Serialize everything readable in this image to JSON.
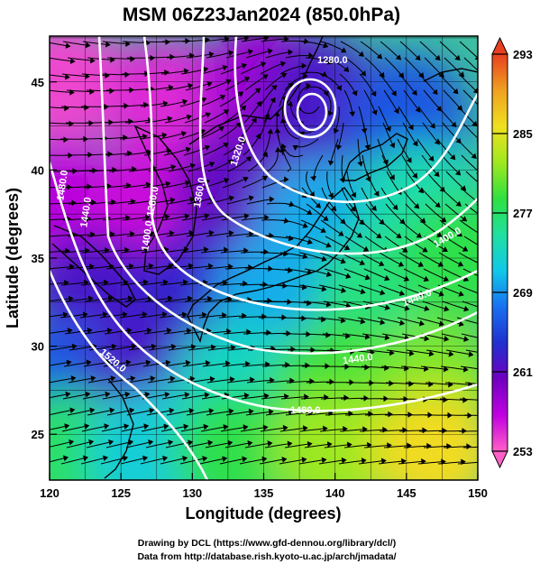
{
  "title": "MSM 06Z23Jan2024 (850.0hPa)",
  "x_axis": {
    "label": "Longitude (degrees)",
    "range": [
      120,
      150
    ],
    "ticks": [
      120,
      125,
      130,
      135,
      140,
      145,
      150
    ]
  },
  "y_axis": {
    "label": "Latitude  (degrees)",
    "range": [
      22.4,
      47.6
    ],
    "ticks": [
      25,
      30,
      35,
      40,
      45
    ]
  },
  "colorbar": {
    "range": [
      253,
      293
    ],
    "ticks": [
      253,
      261,
      269,
      277,
      285,
      293
    ],
    "colors": [
      "#ff60c8",
      "#c000e0",
      "#7000c0",
      "#2030d0",
      "#1870f0",
      "#10c8e8",
      "#20e0a0",
      "#30e040",
      "#a0e820",
      "#f0e020",
      "#f0a020",
      "#e84020"
    ]
  },
  "contour_labels": [
    "1280.0",
    "1320.0",
    "1360.0",
    "1400.0",
    "1440.0",
    "1480.0",
    "1520.0"
  ],
  "credits": {
    "line1": "Drawing by DCL (https://www.gfd-dennou.org/library/dcl/)",
    "line2": "Data from http://database.rish.kyoto-u.ac.jp/arch/jmadata/"
  },
  "chart_data": {
    "type": "heatmap",
    "title": "MSM 06Z23Jan2024 (850.0hPa)",
    "xlabel": "Longitude (degrees)",
    "ylabel": "Latitude  (degrees)",
    "xlim": [
      120,
      150
    ],
    "ylim": [
      22.4,
      47.6
    ],
    "color_range": [
      253,
      293
    ],
    "temperature_samples": [
      {
        "lon": 121,
        "lat": 45,
        "value": 254
      },
      {
        "lon": 128,
        "lat": 44,
        "value": 255
      },
      {
        "lon": 135,
        "lat": 45,
        "value": 258
      },
      {
        "lon": 139,
        "lat": 44,
        "value": 262
      },
      {
        "lon": 145,
        "lat": 43,
        "value": 266
      },
      {
        "lon": 121,
        "lat": 38,
        "value": 257
      },
      {
        "lon": 127,
        "lat": 38,
        "value": 256
      },
      {
        "lon": 133,
        "lat": 39,
        "value": 261
      },
      {
        "lon": 139,
        "lat": 37,
        "value": 270
      },
      {
        "lon": 146,
        "lat": 38,
        "value": 274
      },
      {
        "lon": 123,
        "lat": 33,
        "value": 262
      },
      {
        "lon": 130,
        "lat": 33,
        "value": 263
      },
      {
        "lon": 136,
        "lat": 33,
        "value": 270
      },
      {
        "lon": 143,
        "lat": 33,
        "value": 276
      },
      {
        "lon": 149,
        "lat": 35,
        "value": 278
      },
      {
        "lon": 121,
        "lat": 28,
        "value": 266
      },
      {
        "lon": 127,
        "lat": 28,
        "value": 262
      },
      {
        "lon": 133,
        "lat": 28,
        "value": 273
      },
      {
        "lon": 140,
        "lat": 28,
        "value": 279
      },
      {
        "lon": 147,
        "lat": 28,
        "value": 281
      },
      {
        "lon": 121,
        "lat": 24,
        "value": 277
      },
      {
        "lon": 127,
        "lat": 24,
        "value": 272
      },
      {
        "lon": 133,
        "lat": 24,
        "value": 278
      },
      {
        "lon": 140,
        "lat": 24,
        "value": 282
      },
      {
        "lon": 147,
        "lat": 24,
        "value": 286
      }
    ],
    "contours": [
      {
        "label": "1280.0",
        "level": 1280
      },
      {
        "label": "1320.0",
        "level": 1320
      },
      {
        "label": "1360.0",
        "level": 1360
      },
      {
        "label": "1400.0",
        "level": 1400
      },
      {
        "label": "1440.0",
        "level": 1440
      },
      {
        "label": "1480.0",
        "level": 1480
      },
      {
        "label": "1520.0",
        "level": 1520
      }
    ],
    "grid": true
  }
}
